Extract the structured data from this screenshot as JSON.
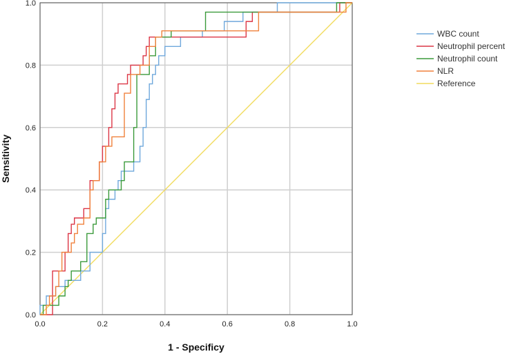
{
  "chart_data": {
    "type": "line",
    "xlabel": "1 - Specificy",
    "ylabel": "Sensitivity",
    "xlim": [
      0,
      1
    ],
    "ylim": [
      0,
      1
    ],
    "x_ticks": [
      "0.0",
      "0.2",
      "0.4",
      "0.6",
      "0.8",
      "1.0"
    ],
    "y_ticks": [
      "0.0",
      "0.2",
      "0.4",
      "0.6",
      "0.8",
      "1.0"
    ],
    "grid": true,
    "legend_position": "right",
    "series": [
      {
        "name": "WBC count",
        "color": "#6fa8dc",
        "points": [
          [
            0,
            0
          ],
          [
            0,
            0.03
          ],
          [
            0.02,
            0.03
          ],
          [
            0.02,
            0.06
          ],
          [
            0.05,
            0.06
          ],
          [
            0.05,
            0.09
          ],
          [
            0.08,
            0.09
          ],
          [
            0.08,
            0.11
          ],
          [
            0.13,
            0.11
          ],
          [
            0.13,
            0.14
          ],
          [
            0.16,
            0.14
          ],
          [
            0.16,
            0.2
          ],
          [
            0.2,
            0.2
          ],
          [
            0.2,
            0.26
          ],
          [
            0.21,
            0.26
          ],
          [
            0.21,
            0.34
          ],
          [
            0.22,
            0.34
          ],
          [
            0.22,
            0.37
          ],
          [
            0.24,
            0.37
          ],
          [
            0.24,
            0.4
          ],
          [
            0.25,
            0.4
          ],
          [
            0.25,
            0.43
          ],
          [
            0.26,
            0.43
          ],
          [
            0.26,
            0.46
          ],
          [
            0.3,
            0.46
          ],
          [
            0.3,
            0.49
          ],
          [
            0.32,
            0.49
          ],
          [
            0.32,
            0.54
          ],
          [
            0.33,
            0.54
          ],
          [
            0.33,
            0.6
          ],
          [
            0.34,
            0.6
          ],
          [
            0.34,
            0.69
          ],
          [
            0.35,
            0.69
          ],
          [
            0.35,
            0.74
          ],
          [
            0.36,
            0.74
          ],
          [
            0.36,
            0.77
          ],
          [
            0.37,
            0.77
          ],
          [
            0.37,
            0.8
          ],
          [
            0.38,
            0.8
          ],
          [
            0.38,
            0.83
          ],
          [
            0.4,
            0.83
          ],
          [
            0.4,
            0.86
          ],
          [
            0.45,
            0.86
          ],
          [
            0.45,
            0.89
          ],
          [
            0.52,
            0.89
          ],
          [
            0.52,
            0.91
          ],
          [
            0.59,
            0.91
          ],
          [
            0.59,
            0.94
          ],
          [
            0.65,
            0.94
          ],
          [
            0.65,
            0.97
          ],
          [
            0.76,
            0.97
          ],
          [
            0.76,
            1.0
          ],
          [
            1,
            1
          ]
        ]
      },
      {
        "name": "Neutrophil percent",
        "color": "#dc3545",
        "points": [
          [
            0,
            0
          ],
          [
            0.04,
            0
          ],
          [
            0.04,
            0.14
          ],
          [
            0.08,
            0.14
          ],
          [
            0.08,
            0.2
          ],
          [
            0.09,
            0.2
          ],
          [
            0.09,
            0.26
          ],
          [
            0.1,
            0.26
          ],
          [
            0.1,
            0.29
          ],
          [
            0.11,
            0.29
          ],
          [
            0.11,
            0.31
          ],
          [
            0.14,
            0.31
          ],
          [
            0.14,
            0.34
          ],
          [
            0.16,
            0.34
          ],
          [
            0.16,
            0.43
          ],
          [
            0.19,
            0.43
          ],
          [
            0.19,
            0.49
          ],
          [
            0.2,
            0.49
          ],
          [
            0.2,
            0.54
          ],
          [
            0.22,
            0.54
          ],
          [
            0.22,
            0.6
          ],
          [
            0.23,
            0.6
          ],
          [
            0.23,
            0.66
          ],
          [
            0.24,
            0.66
          ],
          [
            0.24,
            0.71
          ],
          [
            0.25,
            0.71
          ],
          [
            0.25,
            0.74
          ],
          [
            0.28,
            0.74
          ],
          [
            0.28,
            0.77
          ],
          [
            0.29,
            0.77
          ],
          [
            0.29,
            0.8
          ],
          [
            0.33,
            0.8
          ],
          [
            0.33,
            0.83
          ],
          [
            0.34,
            0.83
          ],
          [
            0.34,
            0.86
          ],
          [
            0.35,
            0.86
          ],
          [
            0.35,
            0.89
          ],
          [
            0.66,
            0.89
          ],
          [
            0.66,
            0.94
          ],
          [
            0.68,
            0.94
          ],
          [
            0.68,
            0.97
          ],
          [
            0.96,
            0.97
          ],
          [
            0.96,
            1.0
          ],
          [
            1,
            1
          ]
        ]
      },
      {
        "name": "Neutrophil count",
        "color": "#3a9a3a",
        "points": [
          [
            0,
            0
          ],
          [
            0.01,
            0
          ],
          [
            0.01,
            0.03
          ],
          [
            0.06,
            0.03
          ],
          [
            0.06,
            0.06
          ],
          [
            0.08,
            0.06
          ],
          [
            0.08,
            0.09
          ],
          [
            0.09,
            0.09
          ],
          [
            0.09,
            0.11
          ],
          [
            0.1,
            0.11
          ],
          [
            0.1,
            0.14
          ],
          [
            0.13,
            0.14
          ],
          [
            0.13,
            0.17
          ],
          [
            0.15,
            0.17
          ],
          [
            0.15,
            0.26
          ],
          [
            0.17,
            0.26
          ],
          [
            0.17,
            0.29
          ],
          [
            0.18,
            0.29
          ],
          [
            0.18,
            0.31
          ],
          [
            0.21,
            0.31
          ],
          [
            0.21,
            0.37
          ],
          [
            0.22,
            0.37
          ],
          [
            0.22,
            0.4
          ],
          [
            0.26,
            0.4
          ],
          [
            0.26,
            0.43
          ],
          [
            0.27,
            0.43
          ],
          [
            0.27,
            0.49
          ],
          [
            0.3,
            0.49
          ],
          [
            0.3,
            0.6
          ],
          [
            0.31,
            0.6
          ],
          [
            0.31,
            0.77
          ],
          [
            0.35,
            0.77
          ],
          [
            0.35,
            0.83
          ],
          [
            0.37,
            0.83
          ],
          [
            0.37,
            0.89
          ],
          [
            0.42,
            0.89
          ],
          [
            0.42,
            0.91
          ],
          [
            0.53,
            0.91
          ],
          [
            0.53,
            0.97
          ],
          [
            0.95,
            0.97
          ],
          [
            0.95,
            1.0
          ],
          [
            1,
            1
          ]
        ]
      },
      {
        "name": "NLR",
        "color": "#f0813c",
        "points": [
          [
            0,
            0
          ],
          [
            0.02,
            0
          ],
          [
            0.02,
            0.03
          ],
          [
            0.03,
            0.03
          ],
          [
            0.03,
            0.06
          ],
          [
            0.05,
            0.06
          ],
          [
            0.05,
            0.09
          ],
          [
            0.06,
            0.09
          ],
          [
            0.06,
            0.14
          ],
          [
            0.07,
            0.14
          ],
          [
            0.07,
            0.2
          ],
          [
            0.1,
            0.2
          ],
          [
            0.1,
            0.23
          ],
          [
            0.11,
            0.23
          ],
          [
            0.11,
            0.26
          ],
          [
            0.12,
            0.26
          ],
          [
            0.12,
            0.29
          ],
          [
            0.14,
            0.29
          ],
          [
            0.14,
            0.31
          ],
          [
            0.16,
            0.31
          ],
          [
            0.16,
            0.4
          ],
          [
            0.17,
            0.4
          ],
          [
            0.17,
            0.43
          ],
          [
            0.19,
            0.43
          ],
          [
            0.19,
            0.49
          ],
          [
            0.21,
            0.49
          ],
          [
            0.21,
            0.54
          ],
          [
            0.23,
            0.54
          ],
          [
            0.23,
            0.57
          ],
          [
            0.27,
            0.57
          ],
          [
            0.27,
            0.71
          ],
          [
            0.29,
            0.71
          ],
          [
            0.29,
            0.77
          ],
          [
            0.32,
            0.77
          ],
          [
            0.32,
            0.8
          ],
          [
            0.35,
            0.8
          ],
          [
            0.35,
            0.86
          ],
          [
            0.37,
            0.86
          ],
          [
            0.37,
            0.89
          ],
          [
            0.39,
            0.89
          ],
          [
            0.39,
            0.91
          ],
          [
            0.7,
            0.91
          ],
          [
            0.7,
            0.97
          ],
          [
            0.98,
            0.97
          ],
          [
            0.98,
            1.0
          ],
          [
            1,
            1
          ]
        ]
      },
      {
        "name": "Reference",
        "color": "#f2dc5d",
        "points": [
          [
            0,
            0
          ],
          [
            1,
            1
          ]
        ]
      }
    ]
  }
}
